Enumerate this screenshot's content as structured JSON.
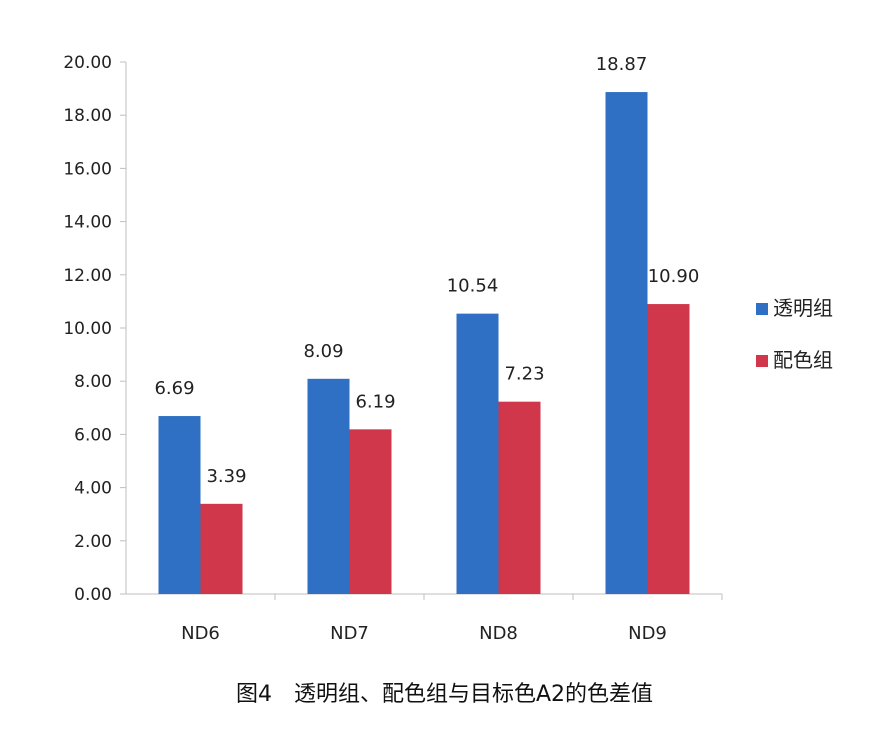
{
  "caption": "图4　透明组、配色组与目标色A2的色差值",
  "chart_data": {
    "type": "bar",
    "categories": [
      "ND6",
      "ND7",
      "ND8",
      "ND9"
    ],
    "series": [
      {
        "name": "透明组",
        "values": [
          6.69,
          8.09,
          10.54,
          18.87
        ],
        "labels": [
          "6.69",
          "8.09",
          "10.54",
          "18.87"
        ],
        "color": "#2F6FC4"
      },
      {
        "name": "配色组",
        "values": [
          3.39,
          6.19,
          7.23,
          10.9
        ],
        "labels": [
          "3.39",
          "6.19",
          "7.23",
          "10.90"
        ],
        "color": "#D0374A"
      }
    ],
    "ylim": [
      0,
      20
    ],
    "yticks": [
      "0.00",
      "2.00",
      "4.00",
      "6.00",
      "8.00",
      "10.00",
      "12.00",
      "14.00",
      "16.00",
      "18.00",
      "20.00"
    ],
    "grid": false,
    "legend": "right",
    "xlabel": "",
    "ylabel": ""
  }
}
